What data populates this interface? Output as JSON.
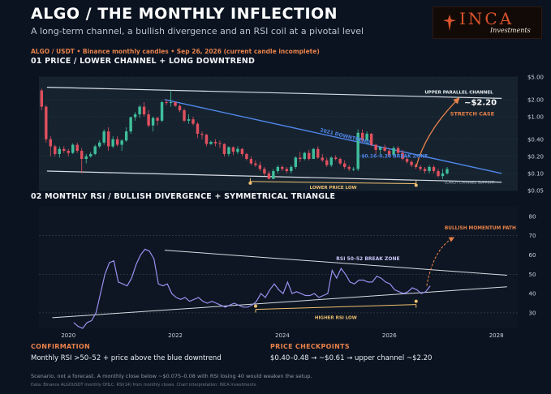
{
  "header": {
    "title": "ALGO  /  THE MONTHLY INFLECTION",
    "subtitle": "A long-term channel, a bullish divergence and an RSI coil at a pivotal level",
    "source_line": "ALGO / USDT  •  Binance monthly candles  •  Sep 26, 2026 (current candle incomplete)"
  },
  "logo": {
    "brand": "INCA",
    "tagline": "Investments"
  },
  "sections": {
    "price_title": "01   PRICE  /  LOWER CHANNEL + LONG DOWNTREND",
    "rsi_title": "02   MONTHLY RSI  /  BULLISH DIVERGENCE + SYMMETRICAL TRIANGLE"
  },
  "footer": {
    "confirmation_head": "CONFIRMATION",
    "confirmation_text": "Monthly RSI >50–52  +  price above the blue downtrend",
    "checkpoints_head": "PRICE CHECKPOINTS",
    "checkpoints_text": "$0.40–0.48  →  ~$0.61  →  upper channel ~$2.20",
    "scenario": "Scenario, not a forecast. A monthly close below ~$0.075–0.08 with RSI losing 40 would weaken the setup.",
    "data_note": "Data: Binance ALGOUSDT monthly OHLC. RSI(14) from monthly closes. Chart interpretation: INCA Investments."
  },
  "colors": {
    "up": "#3fbf9b",
    "down": "#e0505e",
    "downtrend": "#4f86e8",
    "rsi": "#9b8ff0",
    "divergence": "#f0c070",
    "accent": "#e8814a",
    "channel": "#d8dde4"
  },
  "chart_data": [
    {
      "type": "candlestick",
      "title": "01   PRICE  /  LOWER CHANNEL + LONG DOWNTREND",
      "yscale": "log",
      "ylim": [
        0.05,
        5.0
      ],
      "y_ticks": [
        {
          "v": 5.0,
          "label": "$5.00"
        },
        {
          "v": 2.0,
          "label": "$2.00"
        },
        {
          "v": 1.0,
          "label": "$1.00"
        },
        {
          "v": 0.4,
          "label": "$0.40"
        },
        {
          "v": 0.2,
          "label": "$0.20"
        },
        {
          "v": 0.1,
          "label": "$0.10"
        },
        {
          "v": 0.05,
          "label": "$0.05"
        }
      ],
      "xlim": [
        2019.45,
        2028.4
      ],
      "x_start": 2019.5,
      "x_step": 0.0833,
      "candles": [
        [
          2.9,
          3.1,
          1.3,
          1.5
        ],
        [
          1.5,
          1.6,
          0.35,
          0.4
        ],
        [
          0.4,
          0.45,
          0.2,
          0.3
        ],
        [
          0.3,
          0.32,
          0.2,
          0.22
        ],
        [
          0.22,
          0.3,
          0.19,
          0.27
        ],
        [
          0.27,
          0.3,
          0.23,
          0.25
        ],
        [
          0.25,
          0.27,
          0.2,
          0.23
        ],
        [
          0.23,
          0.34,
          0.22,
          0.32
        ],
        [
          0.32,
          0.35,
          0.23,
          0.25
        ],
        [
          0.25,
          0.28,
          0.1,
          0.18
        ],
        [
          0.18,
          0.22,
          0.15,
          0.2
        ],
        [
          0.2,
          0.24,
          0.19,
          0.22
        ],
        [
          0.22,
          0.32,
          0.21,
          0.3
        ],
        [
          0.3,
          0.38,
          0.28,
          0.35
        ],
        [
          0.35,
          0.6,
          0.32,
          0.55
        ],
        [
          0.55,
          0.65,
          0.25,
          0.3
        ],
        [
          0.3,
          0.45,
          0.28,
          0.4
        ],
        [
          0.4,
          0.45,
          0.3,
          0.32
        ],
        [
          0.32,
          0.4,
          0.25,
          0.38
        ],
        [
          0.38,
          0.65,
          0.36,
          0.55
        ],
        [
          0.55,
          1.0,
          0.5,
          0.98
        ],
        [
          0.98,
          1.2,
          0.85,
          1.1
        ],
        [
          1.1,
          1.6,
          0.95,
          1.5
        ],
        [
          1.5,
          1.8,
          1.0,
          1.1
        ],
        [
          1.1,
          1.3,
          0.65,
          0.7
        ],
        [
          0.7,
          1.0,
          0.55,
          0.95
        ],
        [
          0.95,
          1.0,
          0.7,
          0.85
        ],
        [
          0.85,
          1.9,
          0.8,
          1.8
        ],
        [
          1.8,
          2.0,
          1.6,
          1.75
        ],
        [
          1.75,
          2.9,
          1.5,
          1.8
        ],
        [
          1.8,
          1.85,
          1.5,
          1.55
        ],
        [
          1.55,
          1.65,
          1.2,
          1.3
        ],
        [
          1.3,
          1.4,
          0.8,
          0.85
        ],
        [
          0.85,
          1.1,
          0.75,
          0.9
        ],
        [
          0.9,
          1.0,
          0.7,
          0.75
        ],
        [
          0.75,
          0.8,
          0.42,
          0.5
        ],
        [
          0.5,
          0.55,
          0.4,
          0.48
        ],
        [
          0.48,
          0.5,
          0.3,
          0.33
        ],
        [
          0.33,
          0.38,
          0.32,
          0.36
        ],
        [
          0.36,
          0.4,
          0.3,
          0.34
        ],
        [
          0.34,
          0.38,
          0.28,
          0.33
        ],
        [
          0.33,
          0.34,
          0.2,
          0.22
        ],
        [
          0.22,
          0.3,
          0.2,
          0.29
        ],
        [
          0.29,
          0.3,
          0.21,
          0.24
        ],
        [
          0.24,
          0.3,
          0.22,
          0.27
        ],
        [
          0.27,
          0.28,
          0.2,
          0.22
        ],
        [
          0.22,
          0.23,
          0.17,
          0.18
        ],
        [
          0.18,
          0.2,
          0.14,
          0.15
        ],
        [
          0.15,
          0.17,
          0.13,
          0.14
        ],
        [
          0.14,
          0.16,
          0.11,
          0.12
        ],
        [
          0.12,
          0.13,
          0.09,
          0.1
        ],
        [
          0.1,
          0.11,
          0.08,
          0.08
        ],
        [
          0.08,
          0.12,
          0.08,
          0.11
        ],
        [
          0.11,
          0.14,
          0.1,
          0.13
        ],
        [
          0.13,
          0.14,
          0.11,
          0.12
        ],
        [
          0.12,
          0.13,
          0.1,
          0.11
        ],
        [
          0.11,
          0.14,
          0.1,
          0.13
        ],
        [
          0.13,
          0.2,
          0.12,
          0.19
        ],
        [
          0.19,
          0.24,
          0.16,
          0.18
        ],
        [
          0.18,
          0.24,
          0.17,
          0.23
        ],
        [
          0.23,
          0.26,
          0.17,
          0.18
        ],
        [
          0.18,
          0.28,
          0.18,
          0.27
        ],
        [
          0.27,
          0.3,
          0.18,
          0.19
        ],
        [
          0.19,
          0.22,
          0.16,
          0.17
        ],
        [
          0.17,
          0.19,
          0.13,
          0.14
        ],
        [
          0.14,
          0.2,
          0.13,
          0.19
        ],
        [
          0.19,
          0.21,
          0.17,
          0.18
        ],
        [
          0.18,
          0.19,
          0.14,
          0.15
        ],
        [
          0.15,
          0.17,
          0.12,
          0.13
        ],
        [
          0.13,
          0.14,
          0.11,
          0.12
        ],
        [
          0.12,
          0.13,
          0.11,
          0.12
        ],
        [
          0.12,
          0.6,
          0.11,
          0.52
        ],
        [
          0.52,
          0.6,
          0.35,
          0.38
        ],
        [
          0.38,
          0.55,
          0.33,
          0.5
        ],
        [
          0.5,
          0.52,
          0.3,
          0.32
        ],
        [
          0.32,
          0.33,
          0.22,
          0.26
        ],
        [
          0.26,
          0.3,
          0.22,
          0.29
        ],
        [
          0.29,
          0.32,
          0.24,
          0.25
        ],
        [
          0.25,
          0.27,
          0.2,
          0.21
        ],
        [
          0.21,
          0.3,
          0.2,
          0.28
        ],
        [
          0.28,
          0.3,
          0.22,
          0.23
        ],
        [
          0.23,
          0.26,
          0.17,
          0.18
        ],
        [
          0.18,
          0.2,
          0.15,
          0.16
        ],
        [
          0.16,
          0.17,
          0.13,
          0.14
        ],
        [
          0.14,
          0.15,
          0.12,
          0.13
        ],
        [
          0.13,
          0.14,
          0.11,
          0.12
        ],
        [
          0.12,
          0.13,
          0.1,
          0.11
        ],
        [
          0.11,
          0.14,
          0.1,
          0.13
        ],
        [
          0.13,
          0.14,
          0.1,
          0.11
        ],
        [
          0.11,
          0.12,
          0.085,
          0.09
        ],
        [
          0.09,
          0.12,
          0.08,
          0.1
        ],
        [
          0.1,
          0.13,
          0.095,
          0.12
        ]
      ],
      "upper_channel": [
        [
          2019.6,
          3.3
        ],
        [
          2028.1,
          2.1
        ]
      ],
      "lower_channel": [
        [
          2019.6,
          0.11
        ],
        [
          2028.1,
          0.07
        ]
      ],
      "downtrend": [
        [
          2021.8,
          2.0
        ],
        [
          2028.1,
          0.1
        ]
      ],
      "lower_price_low": [
        [
          2023.4,
          0.072
        ],
        [
          2026.5,
          0.066
        ]
      ],
      "stretch_case_arrow": [
        [
          2026.5,
          0.13
        ],
        [
          2027.3,
          2.1
        ]
      ],
      "annotations": {
        "upper_parallel_channel": "UPPER PARALLEL CHANNEL",
        "target": "~$2.20",
        "stretch_case": "STRETCH CASE",
        "downtrend": "2021 DOWNTREND",
        "break_zone": "~$0.16–0.20 BREAK ZONE",
        "lower_price_low": "LOWER PRICE LOW",
        "lower_channel_support": "LOWER CHANNEL SUPPORT"
      }
    },
    {
      "type": "line",
      "title": "02   MONTHLY RSI  /  BULLISH DIVERGENCE + SYMMETRICAL TRIANGLE",
      "ylim": [
        22,
        85
      ],
      "y_ticks": [
        30,
        40,
        50,
        60,
        70,
        80
      ],
      "dashed_levels": [
        30,
        50,
        70
      ],
      "xlim": [
        2019.45,
        2028.4
      ],
      "x_ticks": [
        2020,
        2022,
        2024,
        2026,
        2028
      ],
      "x_start": 2020.1,
      "x_step": 0.0833,
      "values": [
        25,
        23,
        22,
        25,
        26,
        30,
        40,
        50,
        56,
        57,
        46,
        45,
        44,
        48,
        55,
        60,
        63,
        62,
        58,
        45,
        44,
        45,
        40,
        38,
        37,
        38,
        36,
        37,
        38,
        36,
        35,
        36,
        35,
        34,
        33,
        34,
        35,
        34,
        33,
        33,
        34,
        36,
        40,
        38,
        42,
        45,
        42,
        40,
        46,
        40,
        41,
        40,
        39,
        39,
        40,
        38,
        39,
        40,
        52,
        48,
        53,
        50,
        46,
        45,
        47,
        47,
        46,
        46,
        49,
        48,
        46,
        45,
        42,
        41,
        40,
        41,
        43,
        42,
        40,
        41,
        44
      ],
      "triangle_upper": [
        [
          2021.8,
          62.5
        ],
        [
          2028.2,
          49.5
        ]
      ],
      "triangle_lower": [
        [
          2019.7,
          27.5
        ],
        [
          2028.2,
          43.5
        ]
      ],
      "higher_rsi_low": [
        [
          2023.5,
          33.5
        ],
        [
          2026.5,
          36.0
        ]
      ],
      "momentum_arrow": [
        [
          2026.7,
          44
        ],
        [
          2027.2,
          69
        ]
      ],
      "annotations": {
        "bullish_momentum_path": "BULLISH MOMENTUM PATH",
        "rsi_break_zone": "RSI 50–52 BREAK ZONE",
        "higher_rsi_low": "HIGHER RSI LOW"
      }
    }
  ]
}
